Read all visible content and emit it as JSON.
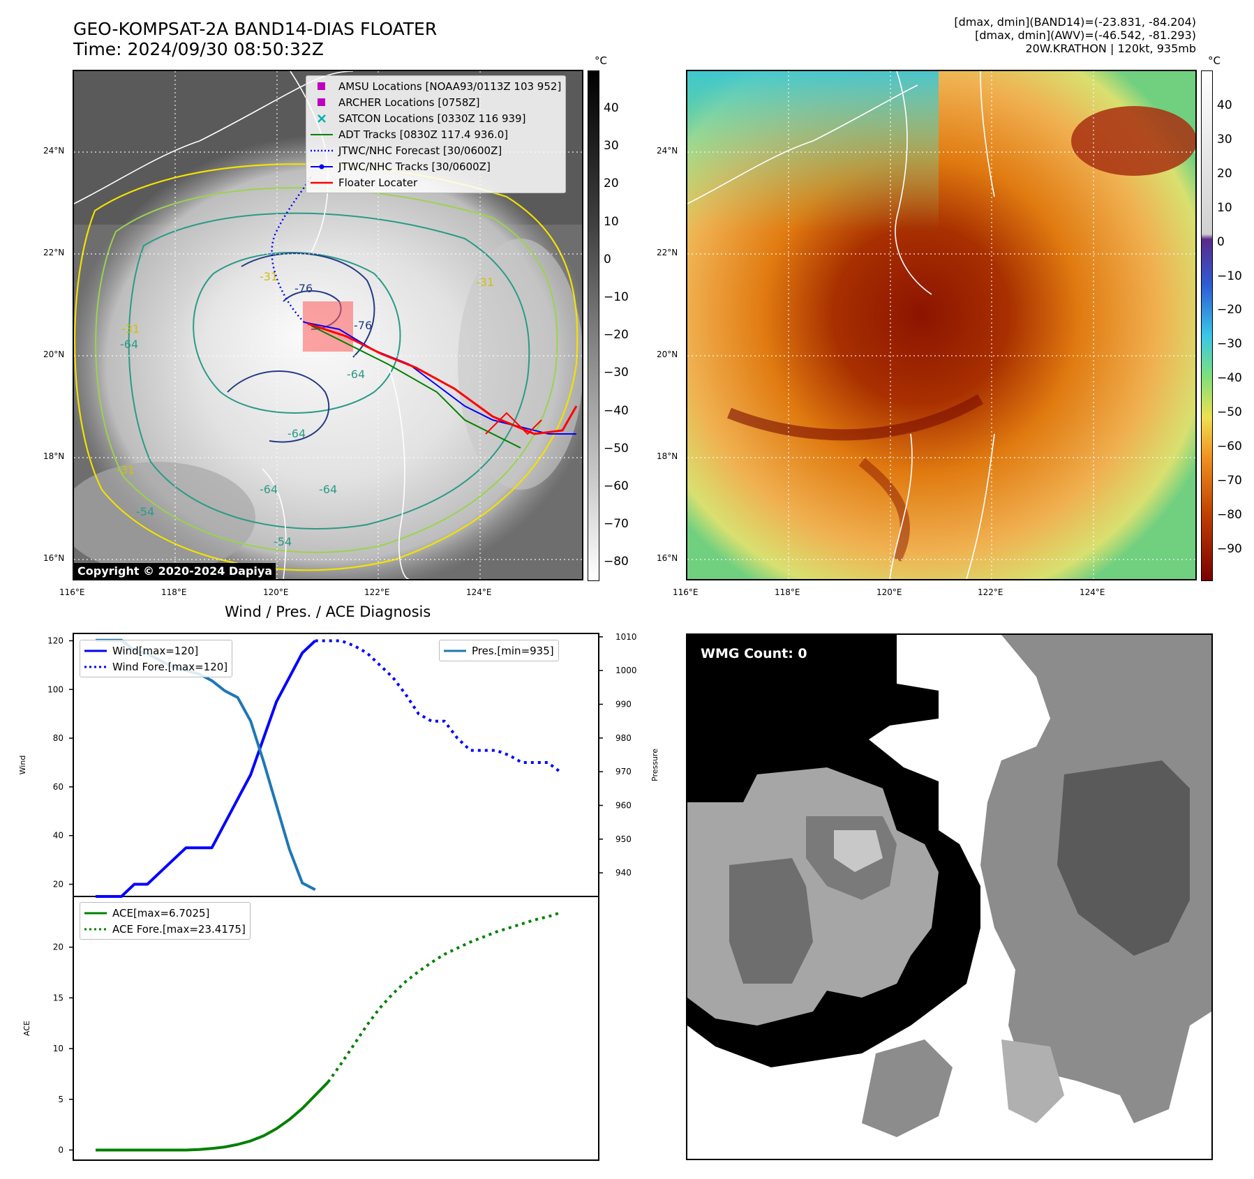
{
  "header": {
    "title_line1": "GEO-KOMPSAT-2A BAND14-DIAS FLOATER",
    "title_line2": "Time: 2024/09/30 08:50:32Z",
    "info_line1": "[dmax, dmin](BAND14)=(-23.831, -84.204)",
    "info_line2": "[dmax, dmin](AWV)=(-46.542, -81.293)",
    "info_line3": "20W.KRATHON | 120kt, 935mb"
  },
  "map_axes": {
    "lat_labels": [
      "24°N",
      "22°N",
      "20°N",
      "18°N",
      "16°N"
    ],
    "lon_labels": [
      "116°E",
      "118°E",
      "120°E",
      "122°E",
      "124°E"
    ]
  },
  "ir_panel": {
    "colorbar_unit": "°C",
    "colorbar_ticks": [
      "40",
      "30",
      "20",
      "10",
      "0",
      "−10",
      "−20",
      "−30",
      "−40",
      "−50",
      "−60",
      "−70",
      "−80"
    ],
    "copyright": "Copyright © 2020-2024 Dapiya",
    "contour_labels": [
      "-76",
      "-76",
      "-64",
      "-64",
      "-64",
      "-64",
      "-64",
      "-54",
      "-54",
      "-31",
      "-31",
      "-31",
      "-31"
    ],
    "legend": [
      {
        "label": "AMSU Locations [NOAA93/0113Z 103 952]",
        "color": "#c000c0",
        "marker": "square"
      },
      {
        "label": "ARCHER Locations [0758Z]",
        "color": "#c000c0",
        "marker": "square"
      },
      {
        "label": "SATCON Locations [0330Z 116 939]",
        "color": "#00b0b0",
        "marker": "x"
      },
      {
        "label": "ADT Tracks [0830Z 117.4 936.0]",
        "color": "#008000",
        "marker": "line"
      },
      {
        "label": "JTWC/NHC Forecast [30/0600Z]",
        "color": "#0000ff",
        "marker": "dotted"
      },
      {
        "label": "JTWC/NHC Tracks [30/0600Z]",
        "color": "#0000ff",
        "marker": "line-dot"
      },
      {
        "label": "Floater Locater",
        "color": "#ff0000",
        "marker": "line"
      }
    ]
  },
  "awv_panel": {
    "colorbar_unit": "°C",
    "colorbar_ticks": [
      "40",
      "30",
      "20",
      "10",
      "0",
      "−10",
      "−20",
      "−30",
      "−40",
      "−50",
      "−60",
      "−70",
      "−80",
      "−90"
    ]
  },
  "diagnosis_title": "Wind / Pres. / ACE Diagnosis",
  "wmg_label": "WMG Count: 0",
  "chart_data": [
    {
      "type": "line",
      "title": "",
      "ylabel": "Wind",
      "y2label": "Pressure",
      "ylim": [
        15,
        123
      ],
      "y2lim": [
        933,
        1011
      ],
      "yticks": [
        20,
        40,
        60,
        80,
        100,
        120
      ],
      "y2ticks": [
        940,
        950,
        960,
        970,
        980,
        990,
        1000,
        1010
      ],
      "series": [
        {
          "name": "Wind[max=120]",
          "axis": "left",
          "style": "solid",
          "color": "#0000ff",
          "values": [
            15,
            15,
            15,
            20,
            20,
            25,
            30,
            35,
            35,
            35,
            45,
            55,
            65,
            80,
            95,
            105,
            115,
            120
          ]
        },
        {
          "name": "Wind Fore.[max=120]",
          "axis": "left",
          "style": "dotted",
          "color": "#0000ff",
          "x_offset": 17,
          "values": [
            120,
            120,
            120,
            118,
            115,
            110,
            105,
            98,
            90,
            87,
            87,
            80,
            75,
            75,
            75,
            73,
            70,
            70,
            70,
            66
          ]
        },
        {
          "name": "Pres.[min=935]",
          "axis": "right",
          "style": "solid",
          "color": "#1f77b4",
          "values": [
            1009,
            1009,
            1009,
            1006,
            1005,
            1003,
            1001,
            1000,
            999,
            997,
            994,
            992,
            985,
            973,
            960,
            947,
            937,
            935
          ]
        }
      ]
    },
    {
      "type": "line",
      "title": "",
      "ylabel": "ACE",
      "ylim": [
        -1,
        25
      ],
      "yticks": [
        0,
        5,
        10,
        15,
        20
      ],
      "series": [
        {
          "name": "ACE[max=6.7025]",
          "style": "solid",
          "color": "#008000",
          "values": [
            0,
            0,
            0,
            0,
            0,
            0,
            0,
            0,
            0.05,
            0.15,
            0.3,
            0.55,
            0.9,
            1.4,
            2.1,
            3.0,
            4.1,
            5.4,
            6.7025
          ]
        },
        {
          "name": "ACE Fore.[max=23.4175]",
          "style": "dotted",
          "color": "#008000",
          "x_offset": 18,
          "values": [
            6.7025,
            8.5,
            10.4,
            12.3,
            14.0,
            15.4,
            16.6,
            17.6,
            18.5,
            19.3,
            19.9,
            20.5,
            21.0,
            21.5,
            21.9,
            22.3,
            22.7,
            23.0,
            23.4175
          ]
        }
      ]
    }
  ]
}
